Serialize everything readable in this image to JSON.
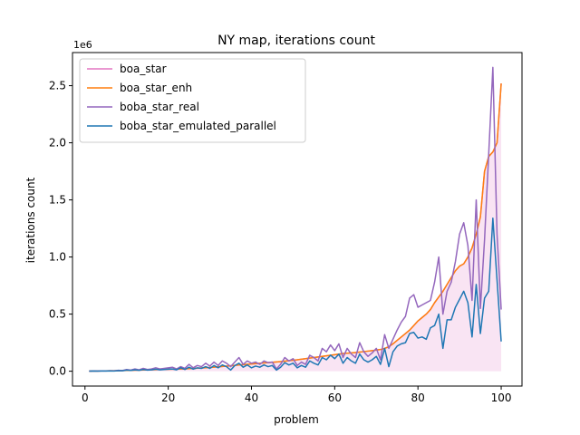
{
  "chart_data": {
    "type": "line",
    "title": "NY map, iterations count",
    "xlabel": "problem",
    "ylabel": "iterations count",
    "y_offset_label": "1e6",
    "xlim": [
      -3,
      105
    ],
    "ylim": [
      -130000,
      2790000
    ],
    "xticks": [
      0,
      20,
      40,
      60,
      80,
      100
    ],
    "yticks": [
      0,
      500000,
      1000000,
      1500000,
      2000000,
      2500000
    ],
    "ytick_labels": [
      "0.0",
      "0.5",
      "1.0",
      "1.5",
      "2.0",
      "2.5"
    ],
    "grid": false,
    "legend_position": "upper-left",
    "x": [
      1,
      2,
      3,
      4,
      5,
      6,
      7,
      8,
      9,
      10,
      11,
      12,
      13,
      14,
      15,
      16,
      17,
      18,
      19,
      20,
      21,
      22,
      23,
      24,
      25,
      26,
      27,
      28,
      29,
      30,
      31,
      32,
      33,
      34,
      35,
      36,
      37,
      38,
      39,
      40,
      41,
      42,
      43,
      44,
      45,
      46,
      47,
      48,
      49,
      50,
      51,
      52,
      53,
      54,
      55,
      56,
      57,
      58,
      59,
      60,
      61,
      62,
      63,
      64,
      65,
      66,
      67,
      68,
      69,
      70,
      71,
      72,
      73,
      74,
      75,
      76,
      77,
      78,
      79,
      80,
      81,
      82,
      83,
      84,
      85,
      86,
      87,
      88,
      89,
      90,
      91,
      92,
      93,
      94,
      95,
      96,
      97,
      98,
      99,
      100
    ],
    "series": [
      {
        "name": "boa_star",
        "color": "#e377c2",
        "fill": true,
        "values": [
          1000,
          1500,
          2000,
          2500,
          3000,
          3500,
          4000,
          5000,
          6000,
          7000,
          8000,
          9000,
          10000,
          11000,
          12000,
          13000,
          14000,
          15000,
          16000,
          17000,
          18000,
          19000,
          20000,
          21000,
          23000,
          25000,
          27000,
          29000,
          31000,
          33000,
          36000,
          39000,
          42000,
          45000,
          48000,
          51000,
          54000,
          57000,
          60000,
          63000,
          66000,
          69000,
          72000,
          75000,
          78000,
          81000,
          84000,
          88000,
          92000,
          96000,
          100000,
          105000,
          110000,
          115000,
          120000,
          125000,
          130000,
          135000,
          140000,
          145000,
          150000,
          155000,
          158000,
          161000,
          164000,
          168000,
          172000,
          176000,
          180000,
          185000,
          190000,
          200000,
          215000,
          240000,
          270000,
          300000,
          330000,
          360000,
          400000,
          440000,
          470000,
          500000,
          540000,
          600000,
          650000,
          700000,
          760000,
          820000,
          880000,
          920000,
          940000,
          1000000,
          1080000,
          1200000,
          1350000,
          1750000,
          1880000,
          1920000,
          2000000,
          2520000
        ]
      },
      {
        "name": "boa_star_enh",
        "color": "#ff7f0e",
        "fill": false,
        "values": [
          1000,
          1500,
          2000,
          2500,
          3000,
          3500,
          4000,
          5000,
          6000,
          7000,
          8000,
          9000,
          10000,
          11000,
          12000,
          13000,
          14000,
          15000,
          16000,
          17000,
          18000,
          19000,
          20000,
          21000,
          23000,
          25000,
          27000,
          29000,
          31000,
          33000,
          36000,
          39000,
          42000,
          45000,
          48000,
          51000,
          54000,
          57000,
          60000,
          63000,
          66000,
          69000,
          72000,
          75000,
          78000,
          81000,
          84000,
          88000,
          92000,
          96000,
          100000,
          105000,
          110000,
          115000,
          120000,
          125000,
          130000,
          135000,
          140000,
          145000,
          150000,
          155000,
          158000,
          161000,
          164000,
          168000,
          172000,
          176000,
          180000,
          185000,
          190000,
          200000,
          215000,
          240000,
          270000,
          300000,
          330000,
          360000,
          400000,
          440000,
          470000,
          500000,
          540000,
          600000,
          650000,
          700000,
          760000,
          820000,
          880000,
          920000,
          940000,
          1000000,
          1080000,
          1200000,
          1350000,
          1750000,
          1880000,
          1920000,
          2000000,
          2520000
        ]
      },
      {
        "name": "boba_star_real",
        "color": "#9467bd",
        "fill": false,
        "values": [
          1000,
          2000,
          1500,
          3000,
          2000,
          4000,
          3000,
          8000,
          6000,
          15000,
          10000,
          20000,
          12000,
          25000,
          15000,
          20000,
          30000,
          20000,
          25000,
          30000,
          35000,
          20000,
          40000,
          25000,
          60000,
          30000,
          50000,
          40000,
          70000,
          45000,
          80000,
          50000,
          90000,
          70000,
          40000,
          80000,
          120000,
          60000,
          90000,
          70000,
          80000,
          60000,
          90000,
          75000,
          80000,
          20000,
          60000,
          120000,
          90000,
          110000,
          50000,
          80000,
          60000,
          140000,
          120000,
          90000,
          200000,
          170000,
          230000,
          180000,
          240000,
          120000,
          200000,
          150000,
          120000,
          250000,
          170000,
          130000,
          160000,
          200000,
          100000,
          320000,
          200000,
          280000,
          360000,
          430000,
          480000,
          640000,
          670000,
          560000,
          580000,
          600000,
          620000,
          780000,
          1000000,
          500000,
          700000,
          780000,
          960000,
          1200000,
          1300000,
          1100000,
          620000,
          1500000,
          550000,
          1150000,
          1900000,
          2660000,
          1200000,
          540000
        ]
      },
      {
        "name": "boba_star_emulated_parallel",
        "color": "#1f77b4",
        "fill": false,
        "values": [
          1000,
          1500,
          1000,
          2000,
          1500,
          3000,
          2000,
          5000,
          4000,
          10000,
          7000,
          12000,
          8000,
          15000,
          10000,
          12000,
          18000,
          12000,
          15000,
          18000,
          20000,
          12000,
          30000,
          15000,
          35000,
          18000,
          30000,
          25000,
          40000,
          25000,
          50000,
          30000,
          55000,
          40000,
          10000,
          50000,
          70000,
          35000,
          55000,
          30000,
          45000,
          35000,
          55000,
          40000,
          50000,
          10000,
          35000,
          75000,
          55000,
          70000,
          30000,
          50000,
          35000,
          90000,
          70000,
          55000,
          120000,
          100000,
          140000,
          110000,
          150000,
          70000,
          120000,
          90000,
          70000,
          150000,
          100000,
          80000,
          100000,
          130000,
          60000,
          200000,
          40000,
          170000,
          220000,
          240000,
          250000,
          330000,
          340000,
          290000,
          300000,
          280000,
          380000,
          400000,
          500000,
          200000,
          450000,
          450000,
          560000,
          630000,
          700000,
          600000,
          300000,
          760000,
          330000,
          640000,
          700000,
          1340000,
          800000,
          260000
        ]
      }
    ]
  }
}
